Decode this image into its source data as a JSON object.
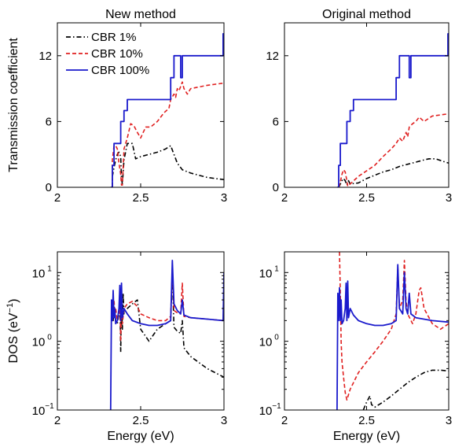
{
  "figure": {
    "panels": [
      {
        "type": "line",
        "title": "New method",
        "xlabel": "",
        "ylabel": "Transmission coefficient",
        "xlim": [
          2,
          3
        ],
        "ylim": [
          0,
          15
        ],
        "yscale": "linear",
        "xticks": [
          "2",
          "2.5",
          "3"
        ],
        "yticks": [
          {
            "v": 0,
            "label": "0"
          },
          {
            "v": 6,
            "label": "6"
          },
          {
            "v": 12,
            "label": "12"
          }
        ],
        "legend": {
          "placement": "top-left"
        },
        "series": [
          {
            "name": "CBR 1%",
            "color": "#000000",
            "dash": "6,3,1.5,3",
            "x": [
              2.33,
              2.33,
              2.34,
              2.35,
              2.36,
              2.37,
              2.38,
              2.385,
              2.39,
              2.4,
              2.42,
              2.45,
              2.46,
              2.47,
              2.5,
              2.55,
              2.6,
              2.65,
              2.68,
              2.7,
              2.72,
              2.75,
              2.8,
              2.85,
              2.9,
              2.95,
              3.0
            ],
            "y": [
              0,
              1.0,
              1.8,
              2.5,
              3.0,
              3.2,
              2.8,
              0.8,
              0.3,
              2.5,
              4.0,
              4.0,
              3.3,
              2.6,
              2.8,
              3.0,
              3.2,
              3.5,
              3.8,
              3.0,
              2.2,
              1.6,
              1.3,
              1.1,
              0.9,
              0.8,
              0.7
            ]
          },
          {
            "name": "CBR 10%",
            "color": "#e02020",
            "dash": "5,3",
            "x": [
              2.33,
              2.33,
              2.34,
              2.35,
              2.36,
              2.37,
              2.38,
              2.385,
              2.39,
              2.4,
              2.42,
              2.44,
              2.46,
              2.48,
              2.5,
              2.53,
              2.56,
              2.6,
              2.64,
              2.67,
              2.68,
              2.7,
              2.71,
              2.72,
              2.73,
              2.75,
              2.76,
              2.78,
              2.8,
              2.9,
              3.0
            ],
            "y": [
              0,
              2.5,
              3.8,
              3.8,
              3.5,
              2.2,
              1.2,
              0.2,
              0.2,
              3.5,
              4.5,
              5.8,
              5.6,
              5.0,
              4.5,
              5.5,
              5.5,
              6.0,
              6.8,
              7.2,
              8.0,
              8.5,
              8.2,
              9.0,
              8.8,
              9.6,
              9.0,
              8.5,
              9.0,
              9.3,
              9.5
            ]
          },
          {
            "name": "CBR 100%",
            "color": "#1a1acc",
            "dash": "",
            "x": [
              2.32,
              2.33,
              2.33,
              2.34,
              2.34,
              2.36,
              2.36,
              2.38,
              2.38,
              2.4,
              2.4,
              2.42,
              2.42,
              2.68,
              2.68,
              2.7,
              2.7,
              2.74,
              2.74,
              2.75,
              2.75,
              2.77,
              2.77,
              2.995,
              2.995,
              3.0
            ],
            "y": [
              0,
              0,
              2,
              2,
              4,
              4,
              4,
              4,
              6,
              6,
              7,
              7,
              8,
              8,
              10,
              10,
              12,
              12,
              10,
              10,
              12,
              12,
              12,
              12,
              14,
              14
            ]
          }
        ]
      },
      {
        "type": "line",
        "title": "Original method",
        "xlabel": "",
        "ylabel": "",
        "xlim": [
          2,
          3
        ],
        "ylim": [
          0,
          15
        ],
        "yscale": "linear",
        "xticks": [
          "2",
          "2.5",
          "3"
        ],
        "yticks": [
          {
            "v": 0,
            "label": "0"
          },
          {
            "v": 6,
            "label": "6"
          },
          {
            "v": 12,
            "label": "12"
          }
        ],
        "legend": null,
        "series": [
          {
            "name": "",
            "color": "#000000",
            "dash": "6,3,1.5,3",
            "x": [
              2.33,
              2.34,
              2.35,
              2.36,
              2.37,
              2.38,
              2.39,
              2.4,
              2.45,
              2.5,
              2.55,
              2.6,
              2.65,
              2.7,
              2.75,
              2.8,
              2.85,
              2.88,
              2.92,
              2.96,
              3.0
            ],
            "y": [
              0,
              0.3,
              0.6,
              0.8,
              0.6,
              0.2,
              0.6,
              0.3,
              0.4,
              0.8,
              1.1,
              1.4,
              1.6,
              1.9,
              2.1,
              2.3,
              2.5,
              2.6,
              2.6,
              2.4,
              2.2
            ]
          },
          {
            "name": "",
            "color": "#e02020",
            "dash": "5,3",
            "x": [
              2.33,
              2.34,
              2.35,
              2.36,
              2.37,
              2.38,
              2.385,
              2.39,
              2.4,
              2.45,
              2.5,
              2.55,
              2.6,
              2.65,
              2.68,
              2.7,
              2.72,
              2.74,
              2.75,
              2.76,
              2.78,
              2.8,
              2.82,
              2.85,
              2.88,
              2.9,
              2.95,
              3.0
            ],
            "y": [
              0,
              0.5,
              1.2,
              1.6,
              1.4,
              0.6,
              0.1,
              0.2,
              0.3,
              1.0,
              1.5,
              2.0,
              2.8,
              3.5,
              4.0,
              4.5,
              4.2,
              5.0,
              4.6,
              5.5,
              5.8,
              6.0,
              6.4,
              6.0,
              6.3,
              6.5,
              6.6,
              6.7
            ]
          },
          {
            "name": "",
            "color": "#1a1acc",
            "dash": "",
            "x": [
              2.32,
              2.33,
              2.33,
              2.34,
              2.34,
              2.36,
              2.36,
              2.38,
              2.38,
              2.4,
              2.4,
              2.42,
              2.42,
              2.68,
              2.68,
              2.7,
              2.7,
              2.76,
              2.76,
              2.77,
              2.77,
              2.995,
              2.995,
              3.0
            ],
            "y": [
              0,
              0,
              2,
              2,
              4,
              4,
              4,
              4,
              6,
              6,
              7,
              7,
              8,
              8,
              10,
              10,
              12,
              12,
              10,
              10,
              12,
              12,
              14,
              14
            ]
          }
        ]
      },
      {
        "type": "line",
        "title": "",
        "xlabel": "Energy (eV)",
        "ylabel": "DOS (eV",
        "ylabel_sup": "−1",
        "ylabel_close": ")",
        "xlim": [
          2,
          3
        ],
        "ylim": [
          0.1,
          20
        ],
        "yscale": "log",
        "xticks": [
          "2",
          "2.5",
          "3"
        ],
        "yticks": [
          {
            "v": 0.1,
            "base": "10",
            "exp": "−1"
          },
          {
            "v": 1,
            "base": "10",
            "exp": "0"
          },
          {
            "v": 10,
            "base": "10",
            "exp": "1"
          }
        ],
        "legend": null,
        "series": [
          {
            "name": "",
            "color": "#000000",
            "dash": "6,3,1.5,3",
            "x": [
              2.33,
              2.335,
              2.34,
              2.345,
              2.35,
              2.36,
              2.37,
              2.375,
              2.38,
              2.385,
              2.39,
              2.395,
              2.4,
              2.42,
              2.45,
              2.48,
              2.5,
              2.55,
              2.6,
              2.65,
              2.68,
              2.69,
              2.7,
              2.72,
              2.74,
              2.75,
              2.76,
              2.8,
              2.9,
              3.0
            ],
            "y": [
              3.0,
              2.0,
              3.5,
              2.5,
              2.0,
              1.8,
              2.5,
              4.5,
              0.7,
              4.0,
              1.5,
              5.0,
              2.5,
              3.0,
              3.5,
              4.0,
              1.5,
              1.0,
              1.5,
              1.8,
              2.0,
              10.0,
              1.6,
              1.4,
              1.3,
              2.0,
              0.8,
              0.6,
              0.4,
              0.3
            ]
          },
          {
            "name": "",
            "color": "#e02020",
            "dash": "5,3",
            "x": [
              2.33,
              2.335,
              2.34,
              2.345,
              2.35,
              2.36,
              2.37,
              2.375,
              2.38,
              2.385,
              2.39,
              2.4,
              2.42,
              2.45,
              2.48,
              2.5,
              2.55,
              2.6,
              2.65,
              2.68,
              2.69,
              2.7,
              2.72,
              2.74,
              2.75,
              2.76,
              2.8,
              2.9,
              3.0
            ],
            "y": [
              3.5,
              2.5,
              4.0,
              2.5,
              3.0,
              2.0,
              2.5,
              5.0,
              1.0,
              4.5,
              1.8,
              3.0,
              3.5,
              3.8,
              3.2,
              2.5,
              2.2,
              2.0,
              2.0,
              2.3,
              12.0,
              2.8,
              2.6,
              2.5,
              7.0,
              2.3,
              2.2,
              2.1,
              2.0
            ]
          },
          {
            "name": "",
            "color": "#1a1acc",
            "dash": "",
            "x": [
              2.32,
              2.325,
              2.33,
              2.335,
              2.34,
              2.345,
              2.35,
              2.36,
              2.37,
              2.375,
              2.38,
              2.385,
              2.39,
              2.4,
              2.42,
              2.45,
              2.5,
              2.55,
              2.6,
              2.65,
              2.68,
              2.69,
              2.7,
              2.72,
              2.74,
              2.75,
              2.76,
              2.8,
              2.9,
              2.995,
              3.0
            ],
            "y": [
              0.1,
              4.0,
              2.0,
              5.5,
              2.2,
              3.0,
              1.8,
              2.0,
              3.0,
              6.5,
              2.0,
              7.0,
              2.2,
              3.0,
              2.5,
              2.0,
              1.8,
              1.7,
              1.7,
              1.8,
              2.0,
              15.0,
              3.5,
              2.8,
              2.5,
              4.0,
              2.4,
              2.2,
              2.1,
              2.0,
              10.0
            ]
          }
        ]
      },
      {
        "type": "line",
        "title": "",
        "xlabel": "Energy (eV)",
        "ylabel": "",
        "xlim": [
          2,
          3
        ],
        "ylim": [
          0.1,
          20
        ],
        "yscale": "log",
        "xticks": [
          "2",
          "2.5",
          "3"
        ],
        "yticks": [
          {
            "v": 0.1,
            "base": "10",
            "exp": "−1"
          },
          {
            "v": 1,
            "base": "10",
            "exp": "0"
          },
          {
            "v": 10,
            "base": "10",
            "exp": "1"
          }
        ],
        "legend": null,
        "series": [
          {
            "name": "",
            "color": "#000000",
            "dash": "6,3,1.5,3",
            "x": [
              2.48,
              2.5,
              2.52,
              2.53,
              2.55,
              2.6,
              2.65,
              2.7,
              2.75,
              2.8,
              2.85,
              2.9,
              2.95,
              3.0
            ],
            "y": [
              0.1,
              0.13,
              0.16,
              0.12,
              0.11,
              0.13,
              0.16,
              0.2,
              0.25,
              0.3,
              0.35,
              0.38,
              0.38,
              0.37
            ]
          },
          {
            "name": "",
            "color": "#e02020",
            "dash": "5,3",
            "x": [
              2.335,
              2.34,
              2.345,
              2.35,
              2.36,
              2.37,
              2.38,
              2.4,
              2.45,
              2.5,
              2.55,
              2.6,
              2.65,
              2.68,
              2.69,
              2.7,
              2.72,
              2.73,
              2.74,
              2.75,
              2.78,
              2.8,
              2.82,
              2.83,
              2.85,
              2.9,
              2.95,
              3.0
            ],
            "y": [
              20,
              5.0,
              1.0,
              0.5,
              0.3,
              0.18,
              0.14,
              0.2,
              0.35,
              0.5,
              0.7,
              1.0,
              1.5,
              2.5,
              12.0,
              3.0,
              4.0,
              15.0,
              4.0,
              2.5,
              1.8,
              2.5,
              5.5,
              6.0,
              3.0,
              1.8,
              1.5,
              1.8
            ]
          },
          {
            "name": "",
            "color": "#1a1acc",
            "dash": "",
            "x": [
              2.32,
              2.325,
              2.33,
              2.335,
              2.34,
              2.345,
              2.35,
              2.36,
              2.37,
              2.375,
              2.38,
              2.385,
              2.39,
              2.4,
              2.42,
              2.45,
              2.5,
              2.55,
              2.6,
              2.65,
              2.68,
              2.69,
              2.7,
              2.72,
              2.73,
              2.74,
              2.75,
              2.76,
              2.77,
              2.8,
              2.9,
              3.0
            ],
            "y": [
              0.1,
              5.0,
              2.0,
              6.0,
              2.0,
              4.0,
              1.8,
              2.0,
              3.0,
              7.0,
              2.0,
              7.5,
              2.2,
              3.0,
              2.4,
              2.0,
              1.8,
              1.7,
              1.7,
              1.8,
              2.0,
              13.0,
              3.0,
              2.5,
              10.0,
              3.0,
              2.5,
              5.0,
              2.5,
              2.2,
              2.0,
              1.9
            ]
          }
        ]
      }
    ]
  },
  "chart_data": [
    {
      "type": "line",
      "title": "New method",
      "ylabel": "Transmission coefficient",
      "xlim": [
        2,
        3
      ],
      "ylim": [
        0,
        15
      ],
      "legend": [
        "CBR 1%",
        "CBR 10%",
        "CBR 100%"
      ],
      "legend_placement": "top-left"
    },
    {
      "type": "line",
      "title": "Original method",
      "xlim": [
        2,
        3
      ],
      "ylim": [
        0,
        15
      ]
    },
    {
      "type": "line",
      "xlabel": "Energy (eV)",
      "ylabel": "DOS (eV−1)",
      "xlim": [
        2,
        3
      ],
      "ylim": [
        0.1,
        20
      ],
      "yscale": "log"
    },
    {
      "type": "line",
      "xlabel": "Energy (eV)",
      "xlim": [
        2,
        3
      ],
      "ylim": [
        0.1,
        20
      ],
      "yscale": "log"
    }
  ]
}
